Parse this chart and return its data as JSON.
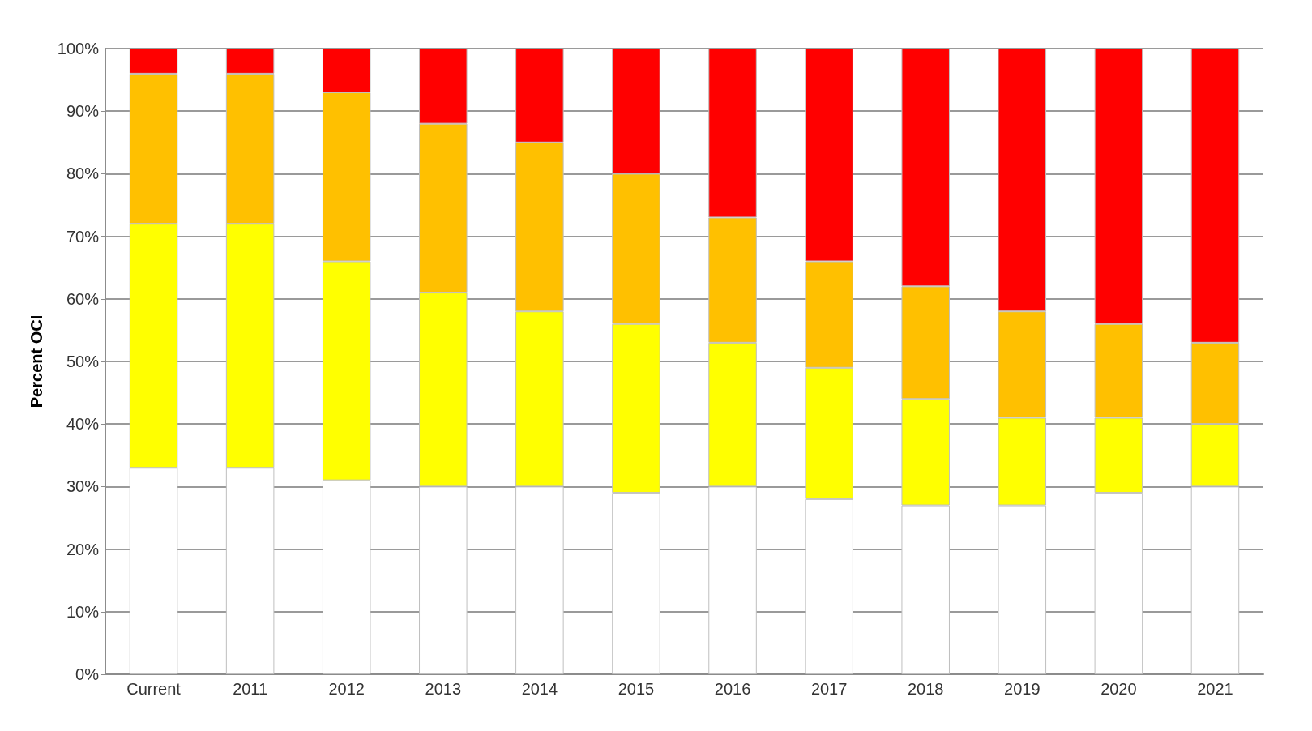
{
  "chart_data": {
    "type": "bar",
    "stacked": true,
    "ylabel": "Percent OCI",
    "categories": [
      "Current",
      "2011",
      "2012",
      "2013",
      "2014",
      "2015",
      "2016",
      "2017",
      "2018",
      "2019",
      "2020",
      "2021"
    ],
    "series": [
      {
        "color": "#ffffff",
        "values": [
          33,
          33,
          31,
          30,
          30,
          29,
          30,
          28,
          27,
          27,
          29,
          30
        ]
      },
      {
        "color": "#ffff00",
        "values": [
          39,
          39,
          35,
          31,
          28,
          27,
          23,
          21,
          17,
          14,
          12,
          10
        ]
      },
      {
        "color": "#ffc000",
        "values": [
          24,
          24,
          27,
          27,
          27,
          24,
          20,
          17,
          18,
          17,
          15,
          13
        ]
      },
      {
        "color": "#ff0000",
        "values": [
          4,
          4,
          7,
          12,
          15,
          20,
          27,
          34,
          38,
          42,
          44,
          47
        ]
      }
    ],
    "ylim": [
      0,
      100
    ],
    "yticks": [
      {
        "value": 0,
        "label": "0%"
      },
      {
        "value": 10,
        "label": "10%"
      },
      {
        "value": 20,
        "label": "20%"
      },
      {
        "value": 30,
        "label": "30%"
      },
      {
        "value": 40,
        "label": "40%"
      },
      {
        "value": 50,
        "label": "50%"
      },
      {
        "value": 60,
        "label": "60%"
      },
      {
        "value": 70,
        "label": "70%"
      },
      {
        "value": 80,
        "label": "80%"
      },
      {
        "value": 90,
        "label": "90%"
      },
      {
        "value": 100,
        "label": "100%"
      }
    ],
    "grid": "y"
  }
}
